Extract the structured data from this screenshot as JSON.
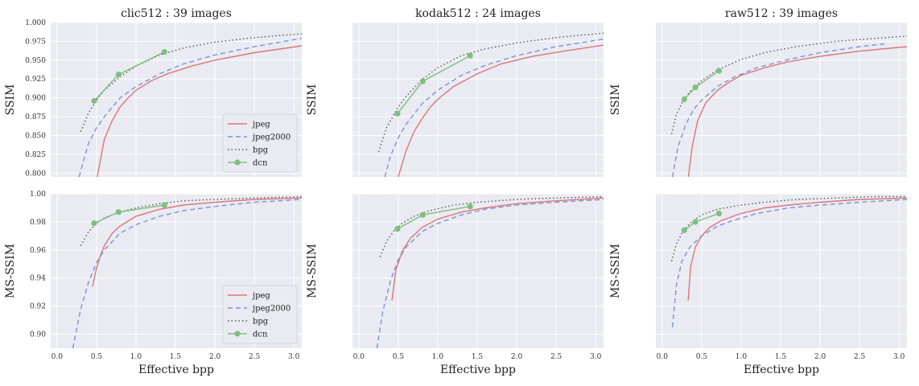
{
  "chart_data": {
    "type": "line",
    "series_styles": [
      {
        "name": "jpeg",
        "color": "#d9767a",
        "dash": ""
      },
      {
        "name": "jpeg2000",
        "color": "#7a94cf",
        "dash": "6,4"
      },
      {
        "name": "bpg",
        "color": "#555555",
        "dash": "1.5,3"
      },
      {
        "name": "dcn",
        "color": "#7fbf7f",
        "dash": "",
        "marker": "circle"
      }
    ],
    "xlabel": "Effective bpp",
    "xlim": [
      -0.08,
      3.1
    ],
    "xticks": [
      0.0,
      0.5,
      1.0,
      1.5,
      2.0,
      2.5,
      3.0
    ],
    "xtick_labels": [
      "0.0",
      "0.5",
      "1.0",
      "1.5",
      "2.0",
      "2.5",
      "3.0"
    ],
    "panels": [
      {
        "title": "clic512 : 39 images",
        "ylabel": "SSIM",
        "row": 0,
        "col": 0,
        "ylim": [
          0.795,
          1.0
        ],
        "yticks": [
          0.8,
          0.825,
          0.85,
          0.875,
          0.9,
          0.925,
          0.95,
          0.975,
          1.0
        ],
        "ytick_labels": [
          "0.800",
          "0.825",
          "0.850",
          "0.875",
          "0.900",
          "0.925",
          "0.950",
          "0.975",
          "1.000"
        ],
        "show_yticks": true,
        "show_xticks": false,
        "xlabel": "",
        "legend": true,
        "series": [
          {
            "name": "jpeg",
            "x": [
              0.5,
              0.6,
              0.7,
              0.8,
              0.9,
              1.0,
              1.2,
              1.4,
              1.7,
              2.0,
              2.5,
              3.1
            ],
            "y": [
              0.79,
              0.845,
              0.87,
              0.888,
              0.9,
              0.91,
              0.923,
              0.932,
              0.942,
              0.95,
              0.96,
              0.969
            ]
          },
          {
            "name": "jpeg2000",
            "x": [
              0.28,
              0.4,
              0.5,
              0.6,
              0.8,
              1.0,
              1.3,
              1.6,
              2.0,
              2.5,
              3.1
            ],
            "y": [
              0.795,
              0.84,
              0.86,
              0.875,
              0.9,
              0.915,
              0.932,
              0.945,
              0.957,
              0.968,
              0.979
            ]
          },
          {
            "name": "bpg",
            "x": [
              0.3,
              0.4,
              0.5,
              0.6,
              0.8,
              1.0,
              1.3,
              1.6,
              2.0,
              2.5,
              3.1
            ],
            "y": [
              0.855,
              0.88,
              0.897,
              0.91,
              0.928,
              0.942,
              0.957,
              0.966,
              0.974,
              0.98,
              0.985
            ]
          },
          {
            "name": "dcn",
            "x": [
              0.47,
              0.78,
              1.36
            ],
            "y": [
              0.896,
              0.931,
              0.961
            ]
          }
        ]
      },
      {
        "title": "kodak512 : 24 images",
        "ylabel": "SSIM",
        "row": 0,
        "col": 1,
        "ylim": [
          0.795,
          1.0
        ],
        "yticks": [
          0.8,
          0.825,
          0.85,
          0.875,
          0.9,
          0.925,
          0.95,
          0.975,
          1.0
        ],
        "ytick_labels": [
          "0.800",
          "0.825",
          "0.850",
          "0.875",
          "0.900",
          "0.925",
          "0.950",
          "0.975",
          "1.000"
        ],
        "show_yticks": false,
        "show_xticks": false,
        "xlabel": "",
        "legend": false,
        "series": [
          {
            "name": "jpeg",
            "x": [
              0.5,
              0.6,
              0.7,
              0.8,
              0.9,
              1.0,
              1.2,
              1.5,
              1.8,
              2.2,
              2.6,
              3.1
            ],
            "y": [
              0.795,
              0.83,
              0.855,
              0.872,
              0.887,
              0.898,
              0.915,
              0.932,
              0.945,
              0.955,
              0.962,
              0.97
            ]
          },
          {
            "name": "jpeg2000",
            "x": [
              0.33,
              0.4,
              0.5,
              0.6,
              0.8,
              1.0,
              1.3,
              1.6,
              2.0,
              2.5,
              3.1
            ],
            "y": [
              0.795,
              0.822,
              0.847,
              0.865,
              0.892,
              0.91,
              0.93,
              0.943,
              0.956,
              0.968,
              0.978
            ]
          },
          {
            "name": "bpg",
            "x": [
              0.25,
              0.35,
              0.5,
              0.6,
              0.8,
              1.0,
              1.3,
              1.6,
              2.0,
              2.5,
              3.1
            ],
            "y": [
              0.828,
              0.86,
              0.888,
              0.902,
              0.924,
              0.94,
              0.956,
              0.965,
              0.973,
              0.98,
              0.986
            ]
          },
          {
            "name": "dcn",
            "x": [
              0.49,
              0.81,
              1.41
            ],
            "y": [
              0.879,
              0.922,
              0.956
            ]
          }
        ]
      },
      {
        "title": "raw512 : 39 images",
        "ylabel": "SSIM",
        "row": 0,
        "col": 2,
        "ylim": [
          0.795,
          1.0
        ],
        "yticks": [
          0.8,
          0.825,
          0.85,
          0.875,
          0.9,
          0.925,
          0.95,
          0.975,
          1.0
        ],
        "ytick_labels": [
          "0.800",
          "0.825",
          "0.850",
          "0.875",
          "0.900",
          "0.925",
          "0.950",
          "0.975",
          "1.000"
        ],
        "show_yticks": false,
        "show_xticks": false,
        "xlabel": "",
        "legend": false,
        "series": [
          {
            "name": "jpeg",
            "x": [
              0.33,
              0.38,
              0.45,
              0.55,
              0.7,
              0.85,
              1.0,
              1.3,
              1.6,
              2.0,
              2.5,
              3.1
            ],
            "y": [
              0.793,
              0.835,
              0.87,
              0.893,
              0.91,
              0.921,
              0.93,
              0.94,
              0.948,
              0.955,
              0.962,
              0.968
            ]
          },
          {
            "name": "jpeg2000",
            "x": [
              0.13,
              0.2,
              0.3,
              0.4,
              0.5,
              0.7,
              0.9,
              1.2,
              1.6,
              2.0,
              2.5,
              2.85
            ],
            "y": [
              0.795,
              0.835,
              0.865,
              0.885,
              0.897,
              0.915,
              0.927,
              0.94,
              0.951,
              0.96,
              0.968,
              0.972
            ]
          },
          {
            "name": "bpg",
            "x": [
              0.12,
              0.18,
              0.25,
              0.35,
              0.5,
              0.7,
              1.0,
              1.3,
              1.7,
              2.2,
              2.7,
              3.1
            ],
            "y": [
              0.852,
              0.878,
              0.893,
              0.908,
              0.923,
              0.937,
              0.951,
              0.96,
              0.968,
              0.975,
              0.979,
              0.982
            ]
          },
          {
            "name": "dcn",
            "x": [
              0.28,
              0.42,
              0.72
            ],
            "y": [
              0.898,
              0.914,
              0.936
            ]
          }
        ]
      },
      {
        "title": "",
        "ylabel": "MS-SSIM",
        "row": 1,
        "col": 0,
        "ylim": [
          0.89,
          1.0
        ],
        "yticks": [
          0.9,
          0.92,
          0.94,
          0.96,
          0.98,
          1.0
        ],
        "ytick_labels": [
          "0.90",
          "0.92",
          "0.94",
          "0.96",
          "0.98",
          "1.00"
        ],
        "show_yticks": true,
        "show_xticks": true,
        "xlabel": "Effective bpp",
        "legend": true,
        "series": [
          {
            "name": "jpeg",
            "x": [
              0.45,
              0.5,
              0.55,
              0.6,
              0.7,
              0.8,
              1.0,
              1.3,
              1.6,
              2.0,
              2.5,
              3.1
            ],
            "y": [
              0.934,
              0.947,
              0.956,
              0.963,
              0.972,
              0.977,
              0.984,
              0.989,
              0.992,
              0.994,
              0.996,
              0.997
            ]
          },
          {
            "name": "jpeg2000",
            "x": [
              0.2,
              0.3,
              0.4,
              0.5,
              0.6,
              0.8,
              1.0,
              1.3,
              1.6,
              2.0,
              2.5,
              3.1
            ],
            "y": [
              0.89,
              0.918,
              0.937,
              0.951,
              0.96,
              0.972,
              0.978,
              0.984,
              0.988,
              0.991,
              0.994,
              0.996
            ]
          },
          {
            "name": "bpg",
            "x": [
              0.3,
              0.4,
              0.5,
              0.6,
              0.8,
              1.0,
              1.3,
              1.6,
              2.0,
              2.5,
              3.1
            ],
            "y": [
              0.963,
              0.973,
              0.979,
              0.983,
              0.987,
              0.99,
              0.993,
              0.995,
              0.996,
              0.997,
              0.998
            ]
          },
          {
            "name": "dcn",
            "x": [
              0.47,
              0.78,
              1.36
            ],
            "y": [
              0.979,
              0.987,
              0.992
            ]
          }
        ]
      },
      {
        "title": "",
        "ylabel": "MS-SSIM",
        "row": 1,
        "col": 1,
        "ylim": [
          0.89,
          1.0
        ],
        "yticks": [
          0.9,
          0.92,
          0.94,
          0.96,
          0.98,
          1.0
        ],
        "ytick_labels": [
          "0.90",
          "0.92",
          "0.94",
          "0.96",
          "0.98",
          "1.00"
        ],
        "show_yticks": false,
        "show_xticks": true,
        "xlabel": "Effective bpp",
        "legend": false,
        "series": [
          {
            "name": "jpeg",
            "x": [
              0.42,
              0.47,
              0.55,
              0.65,
              0.8,
              1.0,
              1.3,
              1.6,
              2.0,
              2.5,
              3.1
            ],
            "y": [
              0.924,
              0.946,
              0.959,
              0.968,
              0.976,
              0.982,
              0.987,
              0.99,
              0.993,
              0.995,
              0.997
            ]
          },
          {
            "name": "jpeg2000",
            "x": [
              0.23,
              0.3,
              0.4,
              0.5,
              0.6,
              0.8,
              1.0,
              1.3,
              1.6,
              2.0,
              2.5,
              3.1
            ],
            "y": [
              0.89,
              0.915,
              0.938,
              0.953,
              0.962,
              0.973,
              0.979,
              0.985,
              0.989,
              0.992,
              0.994,
              0.996
            ]
          },
          {
            "name": "bpg",
            "x": [
              0.27,
              0.35,
              0.45,
              0.55,
              0.7,
              0.9,
              1.2,
              1.5,
              2.0,
              2.5,
              3.1
            ],
            "y": [
              0.955,
              0.966,
              0.974,
              0.979,
              0.984,
              0.988,
              0.992,
              0.994,
              0.996,
              0.997,
              0.998
            ]
          },
          {
            "name": "dcn",
            "x": [
              0.49,
              0.81,
              1.41
            ],
            "y": [
              0.975,
              0.985,
              0.991
            ]
          }
        ]
      },
      {
        "title": "",
        "ylabel": "MS-SSIM",
        "row": 1,
        "col": 2,
        "ylim": [
          0.89,
          1.0
        ],
        "yticks": [
          0.9,
          0.92,
          0.94,
          0.96,
          0.98,
          1.0
        ],
        "ytick_labels": [
          "0.90",
          "0.92",
          "0.94",
          "0.96",
          "0.98",
          "1.00"
        ],
        "show_yticks": false,
        "show_xticks": true,
        "xlabel": "Effective bpp",
        "legend": false,
        "series": [
          {
            "name": "jpeg",
            "x": [
              0.33,
              0.36,
              0.42,
              0.5,
              0.6,
              0.75,
              1.0,
              1.3,
              1.6,
              2.0,
              2.5,
              3.1
            ],
            "y": [
              0.924,
              0.948,
              0.962,
              0.97,
              0.976,
              0.981,
              0.986,
              0.99,
              0.992,
              0.994,
              0.996,
              0.997
            ]
          },
          {
            "name": "jpeg2000",
            "x": [
              0.13,
              0.18,
              0.25,
              0.35,
              0.5,
              0.7,
              0.9,
              1.2,
              1.6,
              2.0,
              2.5,
              3.1
            ],
            "y": [
              0.905,
              0.935,
              0.952,
              0.962,
              0.97,
              0.977,
              0.981,
              0.986,
              0.99,
              0.992,
              0.994,
              0.996
            ]
          },
          {
            "name": "bpg",
            "x": [
              0.12,
              0.18,
              0.25,
              0.35,
              0.5,
              0.7,
              1.0,
              1.3,
              1.7,
              2.2,
              2.7,
              3.1
            ],
            "y": [
              0.952,
              0.964,
              0.972,
              0.979,
              0.985,
              0.989,
              0.992,
              0.994,
              0.996,
              0.997,
              0.998,
              0.998
            ]
          },
          {
            "name": "dcn",
            "x": [
              0.28,
              0.42,
              0.72
            ],
            "y": [
              0.974,
              0.98,
              0.986
            ]
          }
        ]
      }
    ]
  }
}
